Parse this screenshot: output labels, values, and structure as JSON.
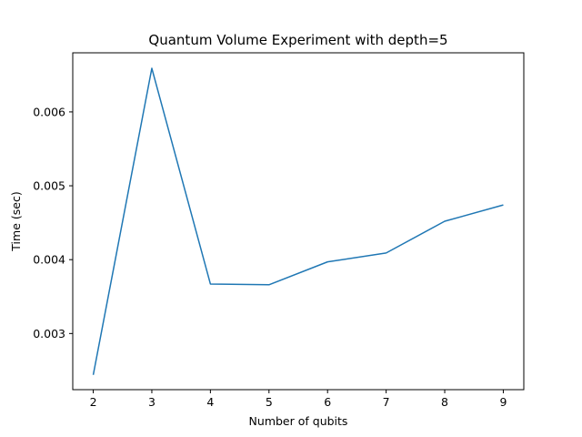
{
  "chart_data": {
    "type": "line",
    "title": "Quantum Volume Experiment with depth=5",
    "xlabel": "Number of qubits",
    "ylabel": "Time (sec)",
    "x": [
      2,
      3,
      4,
      5,
      6,
      7,
      8,
      9
    ],
    "series": [
      {
        "values": [
          0.00244,
          0.00659,
          0.00367,
          0.00366,
          0.00397,
          0.00409,
          0.00452,
          0.00474
        ],
        "color": "#1f77b4"
      }
    ],
    "xlim": [
      1.65,
      9.35
    ],
    "ylim": [
      0.00224,
      0.0068
    ],
    "xticks": [
      2,
      3,
      4,
      5,
      6,
      7,
      8,
      9
    ],
    "yticks": [
      0.003,
      0.004,
      0.005,
      0.006
    ],
    "ytick_labels": [
      "0.003",
      "0.004",
      "0.005",
      "0.006"
    ],
    "grid": false,
    "legend": "none"
  }
}
